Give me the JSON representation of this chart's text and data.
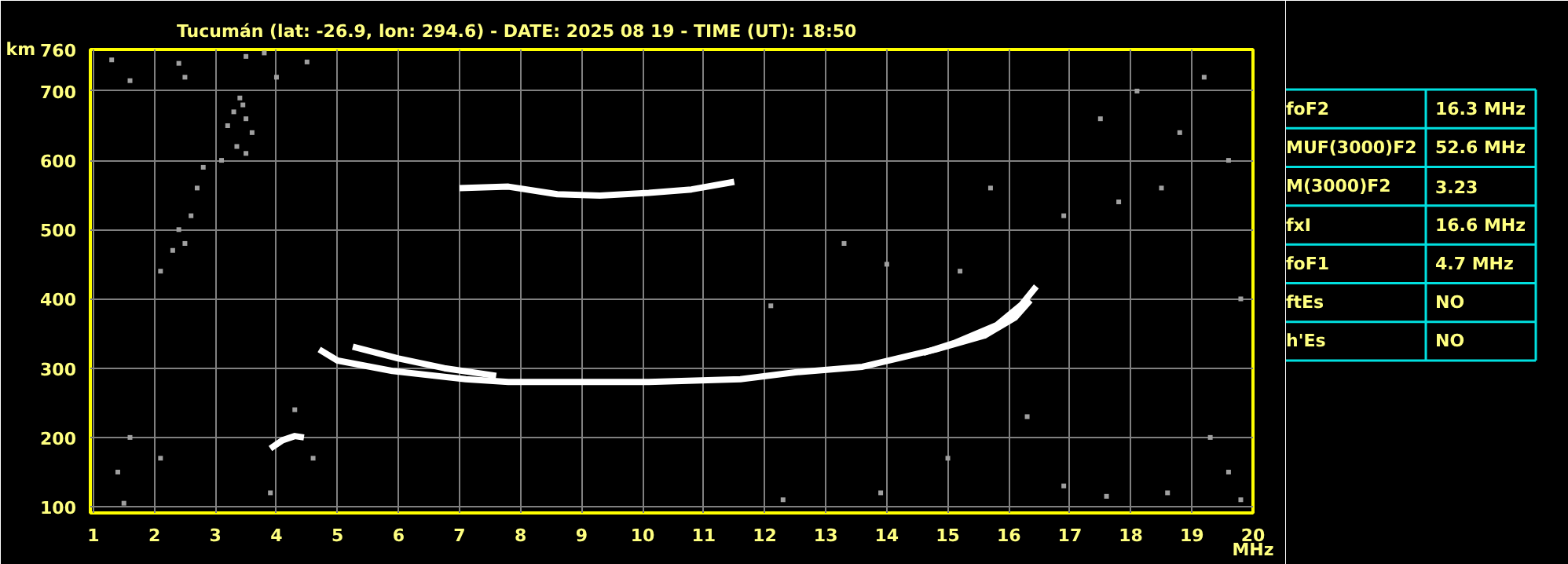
{
  "chart_data": {
    "type": "scatter",
    "title": "Tucumán (lat: -26.9, lon: 294.6) - DATE: 2025 08 19 - TIME (UT): 18:50",
    "xlabel": "MHz",
    "ylabel": "km",
    "xlim": [
      0.95,
      20
    ],
    "ylim": [
      91,
      760
    ],
    "xticks": [
      1,
      2,
      3,
      4,
      5,
      6,
      7,
      8,
      9,
      10,
      11,
      12,
      13,
      14,
      15,
      16,
      17,
      18,
      19,
      20
    ],
    "yticks": [
      100,
      200,
      300,
      400,
      500,
      600,
      700,
      760
    ],
    "grid": true,
    "series": [
      {
        "type": "line",
        "color": "#ffffff",
        "x": [
          4.7,
          5.0,
          5.9,
          7.1,
          7.8,
          10.1,
          11.6,
          12.5,
          13.6,
          14.8,
          15.6,
          16.1,
          16.35
        ],
        "values": [
          327,
          311,
          296,
          284,
          280,
          280,
          284,
          294,
          302,
          327,
          347,
          373,
          398
        ]
      },
      {
        "type": "line",
        "color": "#ffffff",
        "x": [
          5.25,
          6.0,
          6.75,
          7.6
        ],
        "values": [
          331,
          314,
          300,
          289
        ]
      },
      {
        "type": "line",
        "color": "#ffffff",
        "x": [
          14.6,
          15.1,
          15.8,
          16.2,
          16.45
        ],
        "values": [
          322,
          336,
          362,
          391,
          418
        ]
      },
      {
        "type": "line",
        "color": "#ffffff",
        "x": [
          7.0,
          7.8,
          8.6,
          9.3,
          10.1,
          10.8,
          11.5
        ],
        "values": [
          560,
          562,
          551,
          549,
          553,
          558,
          569
        ]
      },
      {
        "type": "line",
        "color": "#ffffff",
        "x": [
          3.9,
          4.1,
          4.3,
          4.45
        ],
        "values": [
          184,
          196,
          202,
          200
        ]
      },
      {
        "marker": "square",
        "color": "#a0a0a0",
        "x": [
          3.2,
          3.3,
          3.4,
          3.5,
          3.35,
          3.1,
          3.5,
          3.6,
          3.45,
          2.5,
          2.4,
          2.6,
          2.3,
          2.7,
          2.8,
          2.1,
          1.3,
          1.6,
          2.4,
          2.5,
          3.5,
          3.8,
          4.5,
          4.0,
          17.5,
          18.1,
          18.8,
          19.2,
          19.6,
          18.5,
          17.8,
          19.8,
          19.3,
          19.6,
          19.8,
          18.6,
          17.6,
          13.9,
          12.3,
          15.0,
          16.9,
          1.5,
          1.4,
          1.6,
          2.1,
          3.9,
          4.6,
          4.3,
          14.0,
          15.2,
          13.3,
          12.1,
          16.3,
          16.9,
          15.7
        ],
        "values": [
          650,
          670,
          690,
          660,
          620,
          600,
          610,
          640,
          680,
          480,
          500,
          520,
          470,
          560,
          590,
          440,
          745,
          715,
          740,
          720,
          750,
          755,
          742,
          720,
          660,
          700,
          640,
          720,
          600,
          560,
          540,
          400,
          200,
          150,
          110,
          120,
          115,
          120,
          110,
          170,
          130,
          105,
          150,
          200,
          170,
          120,
          170,
          240,
          450,
          440,
          480,
          390,
          230,
          520,
          560
        ]
      }
    ],
    "annotations": [
      "foF2",
      "16.3 MHz",
      "MUF(3000)F2",
      "52.6 MHz",
      "M(3000)F2",
      "3.23",
      "fxI",
      "16.6 MHz",
      "foF1",
      "4.7 MHz",
      "ftEs",
      "NO",
      "h'Es",
      "NO"
    ]
  }
}
